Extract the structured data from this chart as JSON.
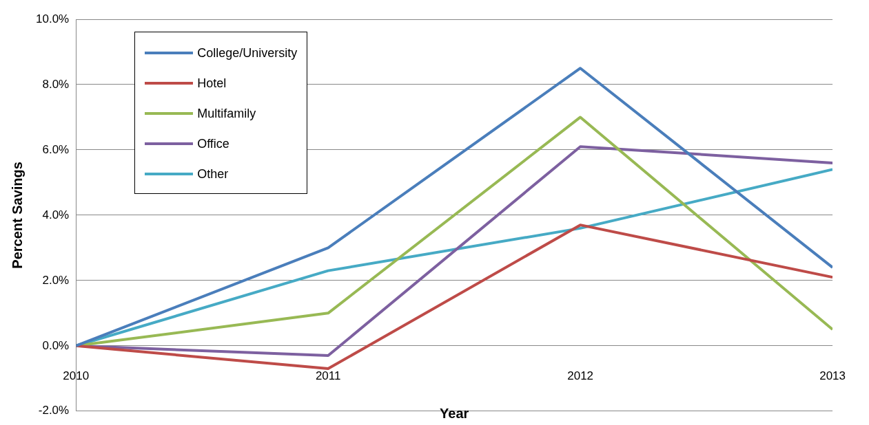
{
  "chart_data": {
    "type": "line",
    "xlabel": "Year",
    "ylabel": "Percent Savings",
    "x": [
      2010,
      2011,
      2012,
      2013
    ],
    "xlim": [
      2010,
      2013
    ],
    "xticks": [
      2010,
      2011,
      2012,
      2013
    ],
    "ylim": [
      -2,
      10
    ],
    "yticks": [
      {
        "value": -2,
        "label": "-2.0%"
      },
      {
        "value": 0,
        "label": "0.0%"
      },
      {
        "value": 2,
        "label": "2.0%"
      },
      {
        "value": 4,
        "label": "4.0%"
      },
      {
        "value": 6,
        "label": "6.0%"
      },
      {
        "value": 8,
        "label": "8.0%"
      },
      {
        "value": 10,
        "label": "10.0%"
      }
    ],
    "grid": "y",
    "legend": "top left",
    "marker": "none",
    "line_style": "solid",
    "series": [
      {
        "name": "College/University",
        "color": "#4a7ebb",
        "values": [
          0,
          3.0,
          8.5,
          2.4
        ]
      },
      {
        "name": "Hotel",
        "color": "#be4b48",
        "values": [
          0,
          -0.7,
          3.7,
          2.1
        ]
      },
      {
        "name": "Multifamily",
        "color": "#98b954",
        "values": [
          0,
          1.0,
          7.0,
          0.5
        ]
      },
      {
        "name": "Office",
        "color": "#7d60a0",
        "values": [
          0,
          -0.3,
          6.1,
          5.6
        ]
      },
      {
        "name": "Other",
        "color": "#46aac5",
        "values": [
          0,
          2.3,
          3.6,
          5.4
        ]
      }
    ]
  }
}
